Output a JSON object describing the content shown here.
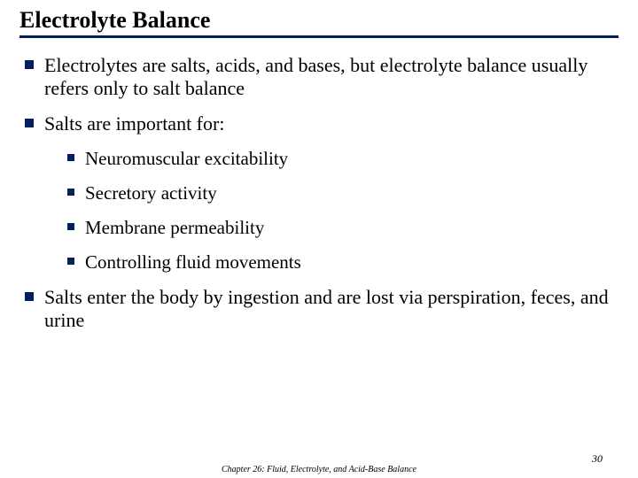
{
  "colors": {
    "title": "#000000",
    "rule": "#002060",
    "body": "#000000",
    "bullet": "#002060",
    "footer": "#000000",
    "pagenum": "#000000",
    "background": "#ffffff"
  },
  "fontsize": {
    "title": 26,
    "body": 22,
    "sub": 21,
    "footer": 10,
    "pagenum": 12
  },
  "title": "Electrolyte Balance",
  "bullets": [
    {
      "text": "Electrolytes are salts, acids, and bases, but electrolyte balance usually refers only to salt balance"
    },
    {
      "text": "Salts are important for:",
      "sub": [
        "Neuromuscular excitability",
        "Secretory activity",
        "Membrane permeability",
        "Controlling fluid movements"
      ]
    },
    {
      "text": "Salts enter the body by ingestion and are lost via perspiration, feces, and urine"
    }
  ],
  "footer": "Chapter 26: Fluid, Electrolyte, and Acid-Base Balance",
  "pagenum": "30"
}
